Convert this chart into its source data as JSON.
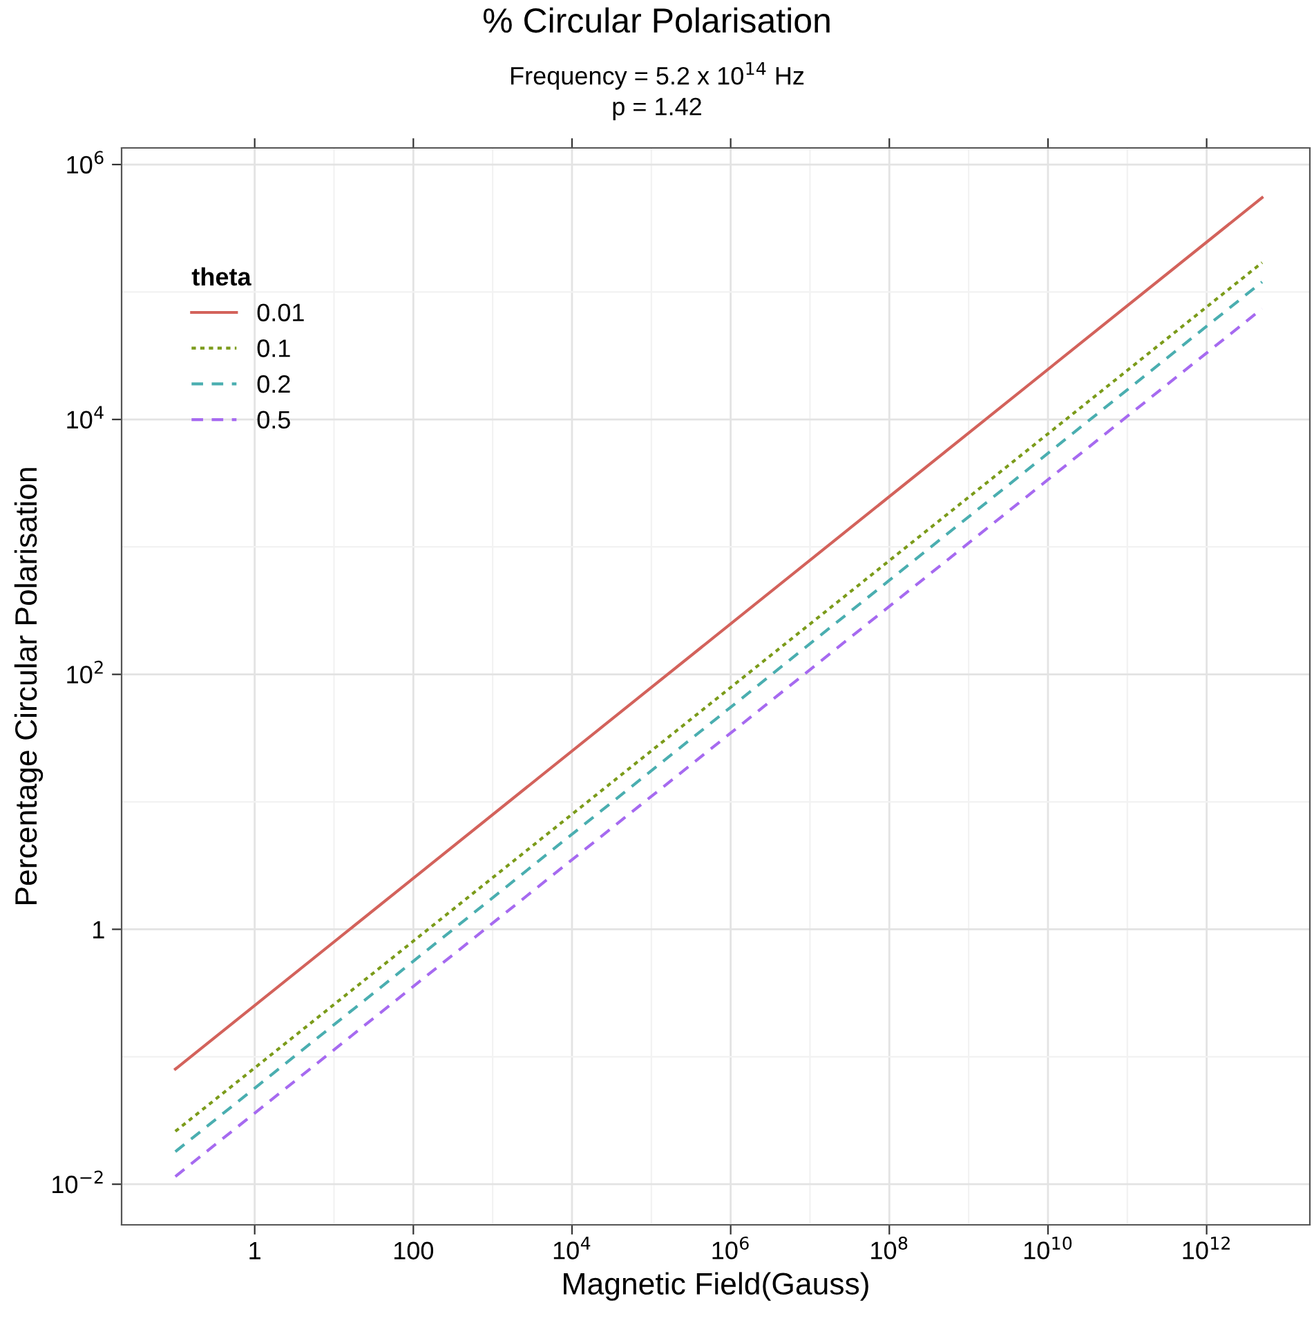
{
  "chart_data": {
    "type": "line",
    "title": "% Circular Polarisation",
    "subtitle": "Frequency = 5.2 x 10$^{14}$ Hz\np = 1.42",
    "xlabel": "Magnetic Field(Gauss)",
    "ylabel": "Percentage Circular Polarisation",
    "legend_title": "theta",
    "log": "xy",
    "grid": true,
    "legend": "top left",
    "xlim": [
      0.021,
      20000000000000.0
    ],
    "ylim": [
      0.0048,
      1350000.0
    ],
    "xticks": [
      1,
      100,
      {
        "value": 10000,
        "label": "10$^{4}$"
      },
      {
        "value": 1000000,
        "label": "10$^{6}$"
      },
      {
        "value": 100000000,
        "label": "10$^{8}$"
      },
      {
        "value": 10000000000,
        "label": "10$^{10}$"
      },
      {
        "value": 1000000000000,
        "label": "10$^{12}$"
      }
    ],
    "yticks": [
      {
        "value": 0.01,
        "label": "10$^{−2}$"
      },
      1,
      {
        "value": 100,
        "label": "10$^{2}$"
      },
      {
        "value": 10000,
        "label": "10$^{4}$"
      },
      {
        "value": 1000000,
        "label": "10$^{6}$"
      }
    ],
    "x": [
      0.1,
      5000000000000.0
    ],
    "series": [
      {
        "name": "0.01",
        "color": "#d3625b",
        "line_style": "solid",
        "values": [
          0.08,
          550000
        ]
      },
      {
        "name": "0.1",
        "color": "#7b9b1a",
        "line_style": "dotted",
        "values": [
          0.026,
          170000
        ]
      },
      {
        "name": "0.2",
        "color": "#4aaeb0",
        "line_style": "dashed",
        "values": [
          0.018,
          120000
        ]
      },
      {
        "name": "0.5",
        "color": "#a66af0",
        "line_style": "dashed",
        "values": [
          0.0115,
          74000
        ]
      }
    ]
  }
}
